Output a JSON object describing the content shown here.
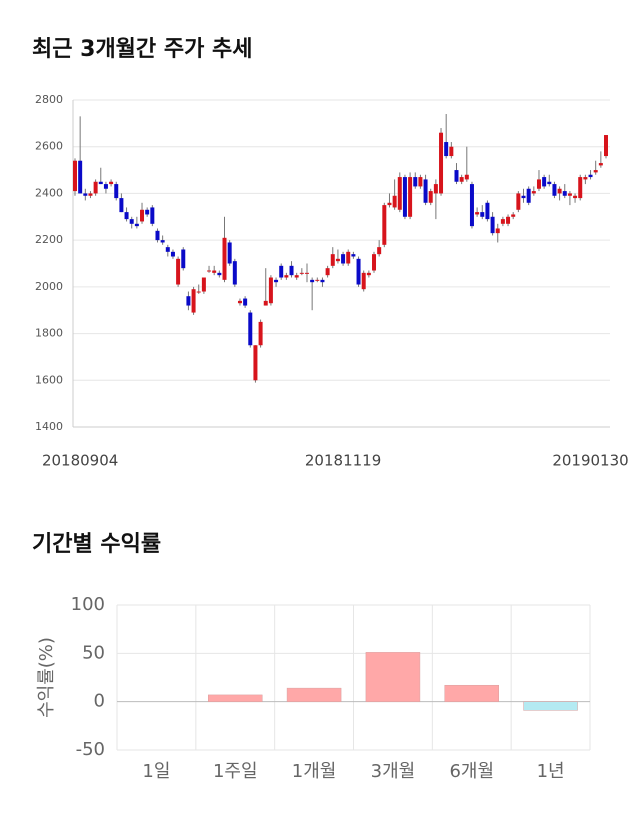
{
  "chart_data": [
    {
      "type": "candlestick",
      "title": "최근 3개월간 주가 추세",
      "categories": [
        null,
        "20180904",
        null,
        null,
        null,
        null,
        null,
        null,
        null,
        null,
        null,
        null,
        null,
        null,
        null,
        null,
        null,
        null,
        null,
        null,
        null,
        null,
        null,
        null,
        null,
        null,
        null,
        null,
        null,
        null,
        null,
        null,
        null,
        null,
        null,
        null,
        null,
        null,
        null,
        null,
        null,
        null,
        null,
        null,
        null,
        null,
        null,
        null,
        null,
        null,
        null,
        null,
        "20181119",
        null,
        null,
        null,
        null,
        null,
        null,
        null,
        null,
        null,
        null,
        null,
        null,
        null,
        null,
        null,
        null,
        null,
        null,
        null,
        null,
        null,
        null,
        null,
        null,
        null,
        null,
        null,
        null,
        null,
        null,
        null,
        null,
        null,
        null,
        null,
        null,
        null,
        null,
        null,
        null,
        null,
        null,
        null,
        null,
        null,
        null,
        null,
        "20190130",
        null,
        null,
        null
      ],
      "open": [
        2410,
        2540,
        2400,
        2390,
        2400,
        2450,
        2440,
        2440,
        2440,
        2380,
        2320,
        2290,
        2270,
        2280,
        2330,
        2340,
        2240,
        2200,
        2170,
        2150,
        2010,
        2160,
        1960,
        1890,
        1980,
        1980,
        2070,
        2060,
        2060,
        2030,
        2190,
        2110,
        1930,
        1950,
        1890,
        1600,
        1750,
        1920,
        1930,
        2030,
        2090,
        2040,
        2090,
        2040,
        2060,
        2060,
        2030,
        2030,
        2030,
        2050,
        2090,
        2110,
        2140,
        2100,
        2140,
        2120,
        1990,
        2050,
        2070,
        2140,
        2180,
        2350,
        2340,
        2330,
        2470,
        2300,
        2470,
        2430,
        2460,
        2360,
        2400,
        2400,
        2620,
        2560,
        2500,
        2450,
        2460,
        2440,
        2310,
        2320,
        2360,
        2300,
        2230,
        2270,
        2270,
        2300,
        2330,
        2390,
        2420,
        2400,
        2420,
        2470,
        2450,
        2440,
        2400,
        2410,
        2390,
        2380,
        2380,
        2460,
        2480,
        2490,
        2520,
        2560
      ],
      "high": [
        2550,
        2730,
        2420,
        2410,
        2460,
        2510,
        2450,
        2460,
        2450,
        2400,
        2340,
        2300,
        2300,
        2360,
        2340,
        2350,
        2250,
        2220,
        2180,
        2160,
        2130,
        2170,
        1980,
        2000,
        2010,
        2040,
        2090,
        2090,
        2070,
        2300,
        2200,
        2120,
        1950,
        1960,
        1900,
        1750,
        1860,
        2080,
        2050,
        2040,
        2100,
        2060,
        2110,
        2060,
        2080,
        2100,
        2040,
        2040,
        2040,
        2090,
        2170,
        2160,
        2150,
        2160,
        2150,
        2130,
        2070,
        2070,
        2150,
        2200,
        2360,
        2400,
        2460,
        2490,
        2480,
        2490,
        2490,
        2480,
        2480,
        2420,
        2460,
        2680,
        2740,
        2620,
        2530,
        2480,
        2600,
        2450,
        2340,
        2350,
        2370,
        2320,
        2270,
        2300,
        2310,
        2320,
        2410,
        2420,
        2430,
        2430,
        2500,
        2480,
        2480,
        2450,
        2430,
        2440,
        2410,
        2400,
        2480,
        2480,
        2500,
        2540,
        2580,
        2650
      ],
      "low": [
        2390,
        2400,
        2370,
        2380,
        2390,
        2440,
        2400,
        2430,
        2370,
        2320,
        2280,
        2250,
        2250,
        2270,
        2300,
        2260,
        2190,
        2180,
        2130,
        2120,
        2000,
        2070,
        1900,
        1880,
        1970,
        1970,
        2060,
        2050,
        2040,
        2020,
        2090,
        2000,
        1920,
        1910,
        1740,
        1590,
        1740,
        1920,
        1920,
        2000,
        2030,
        2030,
        2040,
        2030,
        2050,
        2020,
        1900,
        2020,
        2000,
        2040,
        2080,
        2100,
        2090,
        2090,
        2120,
        2000,
        1980,
        2040,
        2060,
        2130,
        2170,
        2340,
        2330,
        2320,
        2290,
        2290,
        2420,
        2420,
        2350,
        2350,
        2290,
        2390,
        2550,
        2550,
        2440,
        2440,
        2450,
        2250,
        2300,
        2290,
        2280,
        2220,
        2190,
        2260,
        2260,
        2290,
        2320,
        2360,
        2350,
        2390,
        2410,
        2420,
        2430,
        2380,
        2370,
        2380,
        2350,
        2360,
        2370,
        2440,
        2460,
        2480,
        2510,
        2550
      ],
      "close": [
        2540,
        2400,
        2390,
        2400,
        2450,
        2440,
        2420,
        2450,
        2380,
        2320,
        2290,
        2270,
        2260,
        2330,
        2310,
        2270,
        2200,
        2190,
        2150,
        2130,
        2120,
        2080,
        1920,
        1990,
        1980,
        2040,
        2070,
        2070,
        2050,
        2210,
        2100,
        2010,
        1940,
        1920,
        1750,
        1750,
        1850,
        1940,
        2040,
        2020,
        2040,
        2050,
        2050,
        2050,
        2060,
        2060,
        2020,
        2030,
        2020,
        2080,
        2140,
        2120,
        2100,
        2150,
        2130,
        2010,
        2060,
        2060,
        2140,
        2170,
        2350,
        2360,
        2390,
        2470,
        2300,
        2470,
        2430,
        2470,
        2360,
        2410,
        2440,
        2660,
        2560,
        2600,
        2450,
        2470,
        2480,
        2260,
        2320,
        2300,
        2290,
        2230,
        2250,
        2290,
        2300,
        2310,
        2400,
        2380,
        2360,
        2410,
        2460,
        2430,
        2440,
        2390,
        2420,
        2390,
        2400,
        2390,
        2470,
        2470,
        2470,
        2500,
        2530,
        2650
      ],
      "up_color": "#d7141c",
      "down_color": "#0a0ac8",
      "ylim": [
        1400,
        2800
      ],
      "yticks": [
        1400,
        1600,
        1800,
        2000,
        2200,
        2400,
        2600,
        2800
      ],
      "grid": true
    },
    {
      "type": "bar",
      "title": "기간별 수익률",
      "y_label": "수익률(%)",
      "categories": [
        "1일",
        "1주일",
        "1개월",
        "3개월",
        "6개월",
        "1년"
      ],
      "values": [
        0,
        7,
        14,
        51,
        17,
        -9
      ],
      "colors": [
        "#ffa8a8",
        "#ffa8a8",
        "#ffa8a8",
        "#ffa8a8",
        "#ffa8a8",
        "#b4eaf2"
      ],
      "ylim": [
        -50,
        100
      ],
      "yticks": [
        -50,
        0,
        50,
        100
      ],
      "grid": true
    }
  ]
}
